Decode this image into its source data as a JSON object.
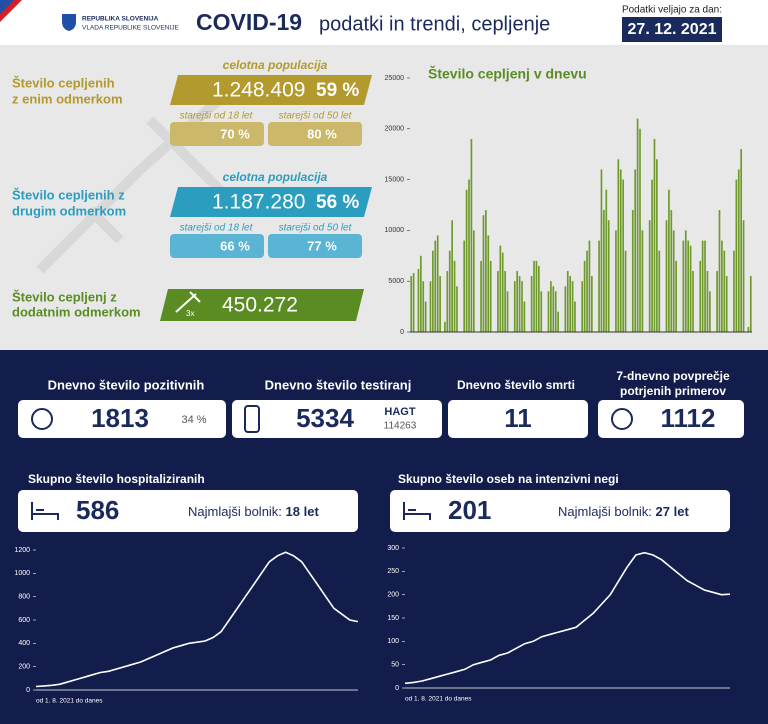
{
  "header": {
    "org_line1": "REPUBLIKA SLOVENIJA",
    "org_line2": "VLADA REPUBLIKE SLOVENIJE",
    "title": "COVID-19",
    "subtitle": "podatki in trendi, cepljenje",
    "date_label": "Podatki veljajo za dan:",
    "date": "27. 12. 2021"
  },
  "vaccination": {
    "first": {
      "label_line1": "Število cepljenih",
      "label_line2": "z enim odmerkom",
      "population_label": "celotna populacija",
      "count": "1.248.409",
      "share": "59 %",
      "age18_label": "starejši od 18 let",
      "age18": "70 %",
      "age50_label": "starejši od 50 let",
      "age50": "80 %"
    },
    "second": {
      "label_line1": "Število cepljenih z",
      "label_line2": "drugim odmerkom",
      "population_label": "celotna populacija",
      "count": "1.187.280",
      "share": "56 %",
      "age18_label": "starejši od 18 let",
      "age18": "66 %",
      "age50_label": "starejši od 50 let",
      "age50": "77 %"
    },
    "booster": {
      "label_line1": "Število cepljenj z",
      "label_line2": "dodatnim odmerkom",
      "badge": "3x",
      "count": "450.272"
    }
  },
  "stats": {
    "positive": {
      "title": "Dnevno število pozitivnih",
      "value": "1813",
      "share": "34 %"
    },
    "tests": {
      "title": "Dnevno število testiranj",
      "value": "5334",
      "hagt_label": "HAGT",
      "hagt": "114263"
    },
    "deaths": {
      "title": "Dnevno število smrti",
      "value": "11"
    },
    "average": {
      "title_line1": "7-dnevno povprečje",
      "title_line2": "potrjenih primerov",
      "value": "1112"
    },
    "hospital": {
      "title": "Skupno število hospitaliziranih",
      "value": "586",
      "youngest_label": "Najmlajši bolnik:",
      "youngest": "18 let"
    },
    "icu": {
      "title": "Skupno število oseb na intenzivni negi",
      "value": "201",
      "youngest_label": "Najmlajši bolnik:",
      "youngest": "27 let"
    }
  },
  "chart_data": [
    {
      "type": "bar",
      "title": "Število cepljenj v dnevu",
      "color": "#6e9a2c",
      "ylim": [
        0,
        25000
      ],
      "yticks": [
        0,
        5000,
        10000,
        15000,
        20000,
        25000
      ],
      "values": [
        5500,
        5800,
        0,
        6200,
        7500,
        5000,
        3000,
        0,
        5000,
        8000,
        9000,
        9500,
        5500,
        0,
        1000,
        6000,
        8000,
        11000,
        7000,
        4500,
        0,
        0,
        9000,
        14000,
        15000,
        19000,
        10000,
        0,
        0,
        7000,
        11500,
        12000,
        9500,
        7000,
        0,
        0,
        6000,
        8500,
        7800,
        6000,
        4000,
        0,
        0,
        5000,
        6000,
        5500,
        5000,
        3000,
        0,
        0,
        5500,
        7000,
        7000,
        6500,
        4000,
        0,
        0,
        4000,
        5000,
        4500,
        4000,
        2000,
        0,
        0,
        4500,
        6000,
        5500,
        5000,
        3000,
        0,
        0,
        5000,
        7000,
        8000,
        9000,
        5500,
        0,
        0,
        9000,
        16000,
        12000,
        14000,
        11000,
        0,
        0,
        10000,
        17000,
        16000,
        15000,
        8000,
        0,
        0,
        12000,
        16000,
        21000,
        20000,
        10000,
        0,
        0,
        11000,
        15000,
        19000,
        17000,
        8000,
        0,
        0,
        11000,
        14000,
        12000,
        10000,
        7000,
        0,
        0,
        9000,
        10000,
        9000,
        8500,
        6000,
        0,
        0,
        7000,
        9000,
        9000,
        6000,
        4000,
        0,
        0,
        6000,
        12000,
        9000,
        8000,
        5500,
        0,
        0,
        8000,
        15000,
        16000,
        18000,
        11000,
        0,
        500,
        5500
      ]
    },
    {
      "type": "line",
      "xlabel": "od 1. 8. 2021 do danes",
      "color": "#ffffff",
      "ylim": [
        0,
        1200
      ],
      "yticks": [
        0,
        200,
        400,
        600,
        800,
        1000,
        1200
      ],
      "values": [
        30,
        35,
        40,
        50,
        70,
        90,
        110,
        130,
        150,
        160,
        180,
        200,
        220,
        240,
        270,
        300,
        330,
        360,
        380,
        400,
        410,
        420,
        450,
        500,
        600,
        700,
        800,
        900,
        1000,
        1100,
        1150,
        1180,
        1150,
        1100,
        1000,
        900,
        800,
        700,
        650,
        600,
        586
      ]
    },
    {
      "type": "line",
      "xlabel": "od 1. 8. 2021 do danes",
      "color": "#ffffff",
      "ylim": [
        0,
        300
      ],
      "yticks": [
        0,
        50,
        100,
        150,
        200,
        250,
        300
      ],
      "values": [
        10,
        12,
        15,
        20,
        25,
        30,
        35,
        40,
        50,
        55,
        60,
        70,
        75,
        85,
        95,
        100,
        110,
        115,
        120,
        125,
        130,
        145,
        160,
        180,
        200,
        230,
        260,
        285,
        290,
        285,
        275,
        260,
        245,
        230,
        220,
        210,
        205,
        200,
        201
      ]
    }
  ]
}
